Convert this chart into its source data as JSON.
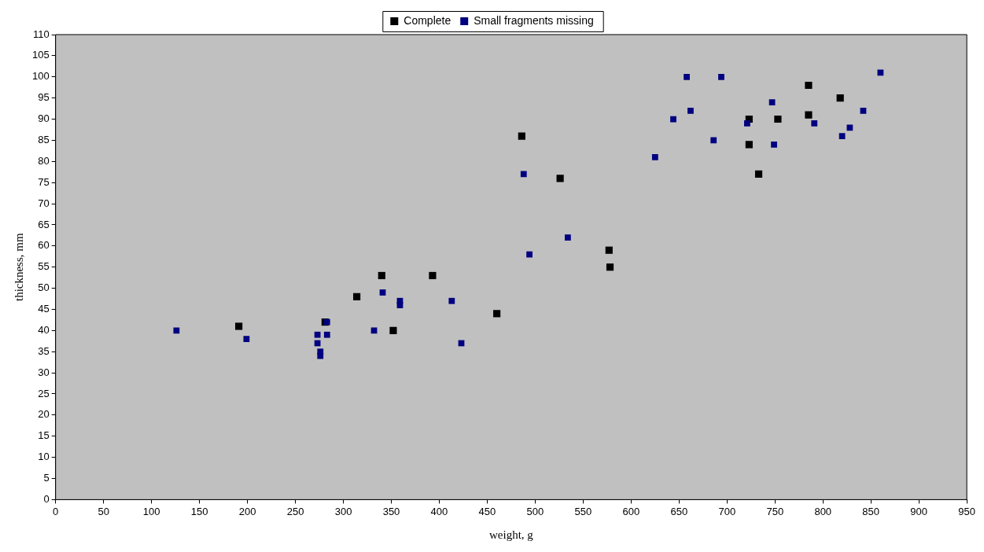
{
  "chart_data": {
    "type": "scatter",
    "xlabel": "weight, g",
    "ylabel": "thickness, mm",
    "xlim": [
      0,
      950
    ],
    "xticks": [
      0,
      50,
      100,
      150,
      200,
      250,
      300,
      350,
      400,
      450,
      500,
      550,
      600,
      650,
      700,
      750,
      800,
      850,
      900,
      950
    ],
    "ylim": [
      0,
      110
    ],
    "yticks": [
      0,
      5,
      10,
      15,
      20,
      25,
      30,
      35,
      40,
      45,
      50,
      55,
      60,
      65,
      70,
      75,
      80,
      85,
      90,
      95,
      100,
      105,
      110
    ],
    "grid": false,
    "legend": "top",
    "marker": "square",
    "series": [
      {
        "name": "Complete",
        "color": "#000000",
        "x": [
          191,
          281,
          314,
          340,
          352,
          393,
          460,
          486,
          526,
          577,
          578,
          723,
          723,
          733,
          753,
          785,
          785,
          818
        ],
        "values": [
          41,
          42,
          48,
          53,
          40,
          53,
          44,
          86,
          76,
          59,
          55,
          90,
          84,
          77,
          90,
          98,
          91,
          95
        ]
      },
      {
        "name": "Small fragments missing",
        "color": "#000080",
        "x": [
          126,
          199,
          273,
          273,
          276,
          276,
          283,
          283,
          332,
          341,
          359,
          359,
          413,
          423,
          488,
          494,
          534,
          625,
          644,
          658,
          662,
          686,
          694,
          721,
          747,
          749,
          791,
          820,
          828,
          842,
          860
        ],
        "values": [
          40,
          38,
          39,
          37,
          35,
          34,
          42,
          39,
          40,
          49,
          47,
          46,
          47,
          37,
          77,
          58,
          62,
          81,
          90,
          100,
          92,
          85,
          100,
          89,
          94,
          84,
          89,
          86,
          88,
          92,
          101
        ]
      }
    ]
  }
}
